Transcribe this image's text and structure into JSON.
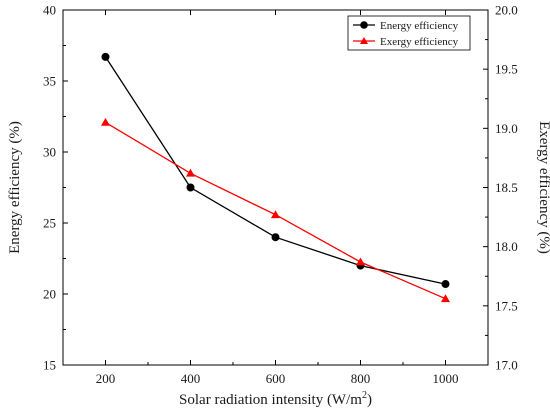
{
  "chart_data": {
    "type": "line",
    "title": "",
    "xlabel": "Solar radiation intensity (W/m",
    "xlabel_sup": "2",
    "xlabel_end": ")",
    "ylabel_left": "Energy efficiency (%)",
    "ylabel_right": "Exergy efficiency (%)",
    "x": [
      200,
      400,
      600,
      800,
      1000
    ],
    "xlim": [
      100,
      1100
    ],
    "ylim_left": [
      15,
      40
    ],
    "ylim_right": [
      17.0,
      20.0
    ],
    "x_ticks": [
      "200",
      "400",
      "600",
      "800",
      "1000"
    ],
    "y_left_ticks": [
      "15",
      "20",
      "25",
      "30",
      "35",
      "40"
    ],
    "y_right_ticks": [
      "17.0",
      "17.5",
      "18.0",
      "18.5",
      "19.0",
      "19.5",
      "20.0"
    ],
    "grid": false,
    "legend_position": "top-right",
    "series": [
      {
        "name": "Energy efficiency",
        "axis": "left",
        "color": "#000000",
        "marker": "circle",
        "values": [
          36.7,
          27.5,
          24.0,
          22.0,
          20.7
        ]
      },
      {
        "name": "Exergy efficiency",
        "axis": "right",
        "color": "#ff0000",
        "marker": "triangle",
        "values": [
          19.05,
          18.62,
          18.27,
          17.87,
          17.56
        ]
      }
    ]
  }
}
